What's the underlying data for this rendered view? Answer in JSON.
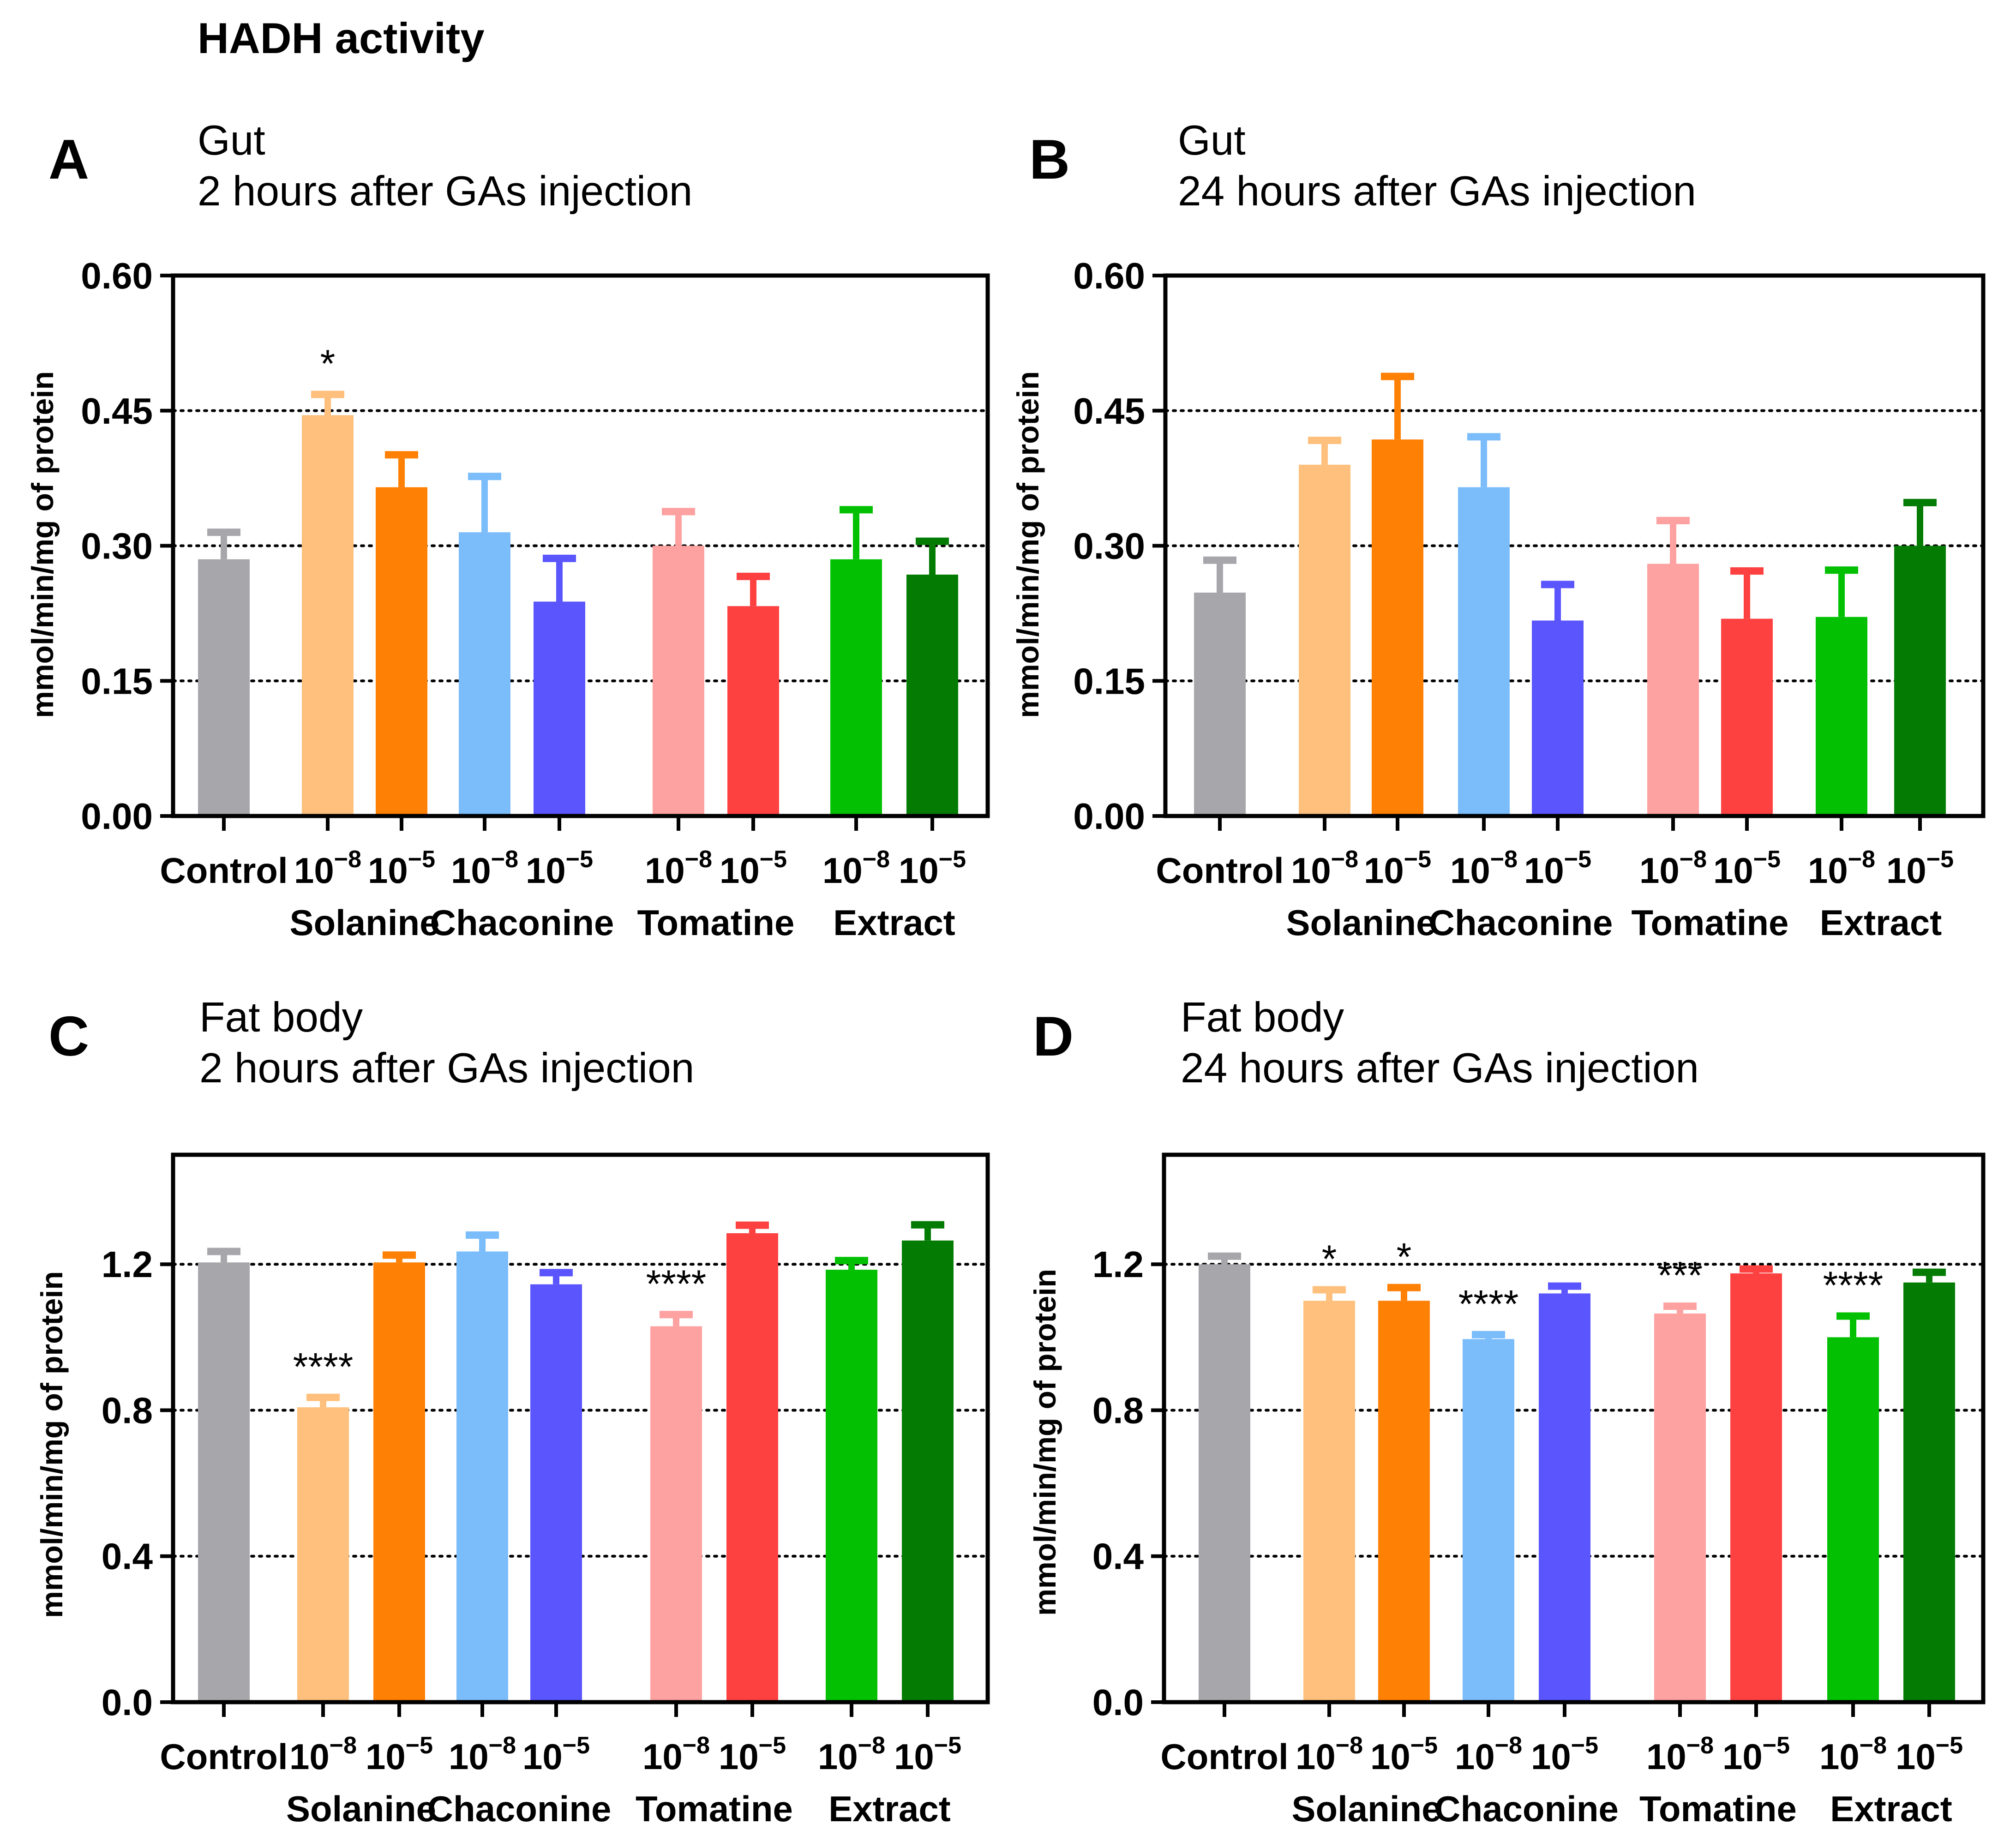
{
  "title": "HADH activity",
  "colors": {
    "Control": "#a7a6ab",
    "Solanine_lo": "#fec07c",
    "Solanine_hi": "#fe8005",
    "Chaconine_lo": "#7bbcfa",
    "Chaconine_hi": "#5a55fd",
    "Tomatine_lo": "#fea1a1",
    "Tomatine_hi": "#fd4141",
    "Extract_lo": "#03c003",
    "Extract_hi": "#047c04"
  },
  "chart_data": [
    {
      "panel": "A",
      "subtitle": [
        "Gut",
        "2 hours after GAs injection"
      ],
      "type": "bar",
      "ylabel": "mmol/min/mg of protein",
      "yticks": [
        "0.00",
        "0.15",
        "0.30",
        "0.45",
        "0.60"
      ],
      "ylim": [
        0,
        0.6
      ],
      "gridlines": [
        0.15,
        0.3,
        0.45
      ],
      "x_tick_labels": [
        "Control",
        "10",
        "10",
        "10",
        "10",
        "10",
        "10",
        "10",
        "10"
      ],
      "exponents": [
        "",
        "−8",
        "−5",
        "−8",
        "−5",
        "−8",
        "−5",
        "−8",
        "−5"
      ],
      "groups": [
        "Solanine",
        "Chaconine",
        "Tomatine",
        "Extract"
      ],
      "categories": [
        "Control",
        "Solanine 10^-8",
        "Solanine 10^-5",
        "Chaconine 10^-8",
        "Chaconine 10^-5",
        "Tomatine 10^-8",
        "Tomatine 10^-5",
        "Extract 10^-8",
        "Extract 10^-5"
      ],
      "values": [
        0.285,
        0.445,
        0.365,
        0.315,
        0.238,
        0.3,
        0.233,
        0.285,
        0.268
      ],
      "errors": [
        0.03,
        0.023,
        0.036,
        0.062,
        0.048,
        0.038,
        0.033,
        0.055,
        0.037
      ],
      "annotations": [
        "",
        "*",
        "",
        "",
        "",
        "",
        "",
        "",
        ""
      ]
    },
    {
      "panel": "B",
      "subtitle": [
        "Gut",
        "24 hours after GAs injection"
      ],
      "type": "bar",
      "ylabel": "mmol/min/mg of protein",
      "yticks": [
        "0.00",
        "0.15",
        "0.30",
        "0.45",
        "0.60"
      ],
      "ylim": [
        0,
        0.6
      ],
      "gridlines": [
        0.15,
        0.3,
        0.45
      ],
      "x_tick_labels": [
        "Control",
        "10",
        "10",
        "10",
        "10",
        "10",
        "10",
        "10",
        "10"
      ],
      "exponents": [
        "",
        "−8",
        "−5",
        "−8",
        "−5",
        "−8",
        "−5",
        "−8",
        "−5"
      ],
      "groups": [
        "Solanine",
        "Chaconine",
        "Tomatine",
        "Extract"
      ],
      "categories": [
        "Control",
        "Solanine 10^-8",
        "Solanine 10^-5",
        "Chaconine 10^-8",
        "Chaconine 10^-5",
        "Tomatine 10^-8",
        "Tomatine 10^-5",
        "Extract 10^-8",
        "Extract 10^-5"
      ],
      "values": [
        0.248,
        0.39,
        0.418,
        0.365,
        0.217,
        0.28,
        0.219,
        0.221,
        0.3
      ],
      "errors": [
        0.036,
        0.027,
        0.07,
        0.056,
        0.04,
        0.048,
        0.053,
        0.052,
        0.048
      ],
      "annotations": [
        "",
        "",
        "",
        "",
        "",
        "",
        "",
        "",
        ""
      ]
    },
    {
      "panel": "C",
      "subtitle": [
        "Fat body",
        "2 hours after GAs injection"
      ],
      "type": "bar",
      "ylabel": "mmol/min/mg of protein",
      "yticks": [
        "0.0",
        "0.4",
        "0.8",
        "1.2"
      ],
      "ylim": [
        0,
        1.5
      ],
      "gridlines": [
        0.4,
        0.8,
        1.2
      ],
      "x_tick_labels": [
        "Control",
        "10",
        "10",
        "10",
        "10",
        "10",
        "10",
        "10",
        "10"
      ],
      "exponents": [
        "",
        "−8",
        "−5",
        "−8",
        "−5",
        "−8",
        "−5",
        "−8",
        "−5"
      ],
      "groups": [
        "Solanine",
        "Chaconine",
        "Tomatine",
        "Extract"
      ],
      "categories": [
        "Control",
        "Solanine 10^-8",
        "Solanine 10^-5",
        "Chaconine 10^-8",
        "Chaconine 10^-5",
        "Tomatine 10^-8",
        "Tomatine 10^-5",
        "Extract 10^-8",
        "Extract 10^-5"
      ],
      "values": [
        1.205,
        0.808,
        1.205,
        1.235,
        1.145,
        1.03,
        1.285,
        1.185,
        1.265
      ],
      "errors": [
        0.03,
        0.027,
        0.02,
        0.045,
        0.032,
        0.032,
        0.022,
        0.025,
        0.043
      ],
      "annotations": [
        "",
        "****",
        "",
        "",
        "",
        "****",
        "",
        "",
        ""
      ]
    },
    {
      "panel": "D",
      "subtitle": [
        "Fat body",
        "24 hours after GAs injection"
      ],
      "type": "bar",
      "ylabel": "mmol/min/mg of protein",
      "yticks": [
        "0.0",
        "0.4",
        "0.8",
        "1.2"
      ],
      "ylim": [
        0,
        1.5
      ],
      "gridlines": [
        0.4,
        0.8,
        1.2
      ],
      "x_tick_labels": [
        "Control",
        "10",
        "10",
        "10",
        "10",
        "10",
        "10",
        "10",
        "10"
      ],
      "exponents": [
        "",
        "−8",
        "−5",
        "−8",
        "−5",
        "−8",
        "−5",
        "−8",
        "−5"
      ],
      "groups": [
        "Solanine",
        "Chaconine",
        "Tomatine",
        "Extract"
      ],
      "categories": [
        "Control",
        "Solanine 10^-8",
        "Solanine 10^-5",
        "Chaconine 10^-8",
        "Chaconine 10^-5",
        "Tomatine 10^-8",
        "Tomatine 10^-5",
        "Extract 10^-8",
        "Extract 10^-5"
      ],
      "values": [
        1.2,
        1.1,
        1.1,
        0.995,
        1.12,
        1.065,
        1.175,
        1.0,
        1.15
      ],
      "errors": [
        0.022,
        0.03,
        0.036,
        0.012,
        0.02,
        0.02,
        0.012,
        0.058,
        0.028
      ],
      "annotations": [
        "",
        "*",
        "*",
        "****",
        "",
        "***",
        "",
        "****",
        ""
      ]
    }
  ]
}
